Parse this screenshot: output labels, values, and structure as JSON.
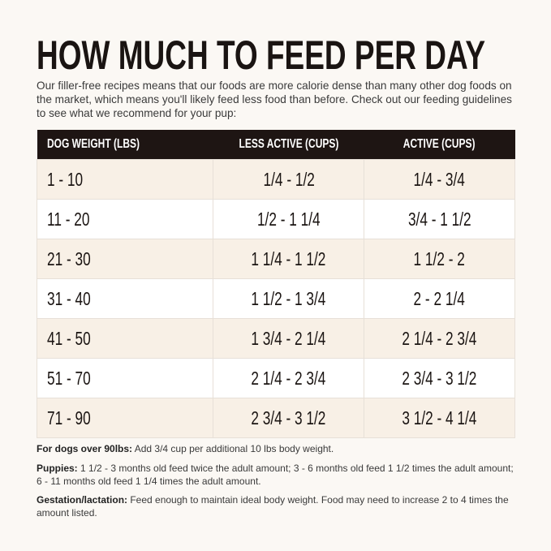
{
  "title": "HOW MUCH TO FEED PER DAY",
  "intro": "Our filler-free recipes means that our foods are more calorie dense than many other dog foods on the market, which means you'll likely feed less food than before. Check out our feeding guidelines to see what we recommend for your pup:",
  "table": {
    "headers": [
      "DOG WEIGHT (LBS)",
      "LESS ACTIVE (CUPS)",
      "ACTIVE (CUPS)"
    ],
    "rows": [
      [
        "1 - 10",
        "1/4 - 1/2",
        "1/4 - 3/4"
      ],
      [
        "11 - 20",
        "1/2 - 1 1/4",
        "3/4 - 1 1/2"
      ],
      [
        "21 - 30",
        "1 1/4 - 1 1/2",
        "1 1/2 - 2"
      ],
      [
        "31 - 40",
        "1 1/2 - 1 3/4",
        "2 - 2 1/4"
      ],
      [
        "41 - 50",
        "1 3/4 - 2 1/4",
        "2 1/4 - 2 3/4"
      ],
      [
        "51 - 70",
        "2 1/4 - 2 3/4",
        "2 3/4 - 3 1/2"
      ],
      [
        "71 - 90",
        "2 3/4 - 3 1/2",
        "3 1/2 - 4 1/4"
      ]
    ]
  },
  "notes": [
    {
      "label": "For dogs over 90lbs:",
      "text": " Add 3/4 cup per additional 10 lbs body weight."
    },
    {
      "label": "Puppies:",
      "text": " 1 1/2 - 3 months old feed twice the adult amount; 3 - 6 months old feed 1 1/2 times the adult amount; 6 - 11 months old feed 1 1/4 times the adult amount."
    },
    {
      "label": "Gestation/lactation:",
      "text": " Feed enough to maintain ideal body weight. Food may need to increase 2 to 4 times the amount listed."
    }
  ],
  "colors": {
    "header_bg": "#1e1513",
    "odd_row": "#f8f0e6",
    "even_row": "#ffffff",
    "background": "#fbf8f4"
  }
}
